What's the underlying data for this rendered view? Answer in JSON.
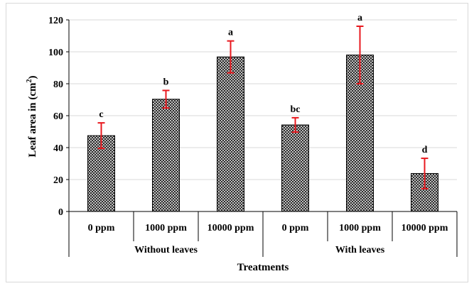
{
  "chart_data": {
    "type": "bar",
    "title": "",
    "ylabel": "Leaf area in (cm²)",
    "ylabel_main": "Leaf area in (cm",
    "ylabel_sup": "2",
    "ylabel_end": ")",
    "xlabel": "Treatments",
    "ylim": [
      0,
      120
    ],
    "yticks": [
      0,
      20,
      40,
      60,
      80,
      100,
      120
    ],
    "grid": true,
    "categories": [
      "0 ppm",
      "1000 ppm",
      "10000 ppm",
      "0 ppm",
      "1000 ppm",
      "10000 ppm"
    ],
    "groups": [
      {
        "label": "Without leaves",
        "span": [
          0,
          2
        ]
      },
      {
        "label": "With leaves",
        "span": [
          3,
          5
        ]
      }
    ],
    "values": [
      47.5,
      70.3,
      96.8,
      54.2,
      98.0,
      23.8
    ],
    "errors": [
      8,
      5.5,
      10,
      4.5,
      18,
      9.5
    ],
    "significance_letters": [
      "c",
      "b",
      "a",
      "bc",
      "a",
      "d"
    ],
    "colors": {
      "bar_fill": "#ffffff",
      "bar_hatch": "#222222",
      "error_bar": "#e8191f",
      "grid": "#d9d9d9",
      "axis": "#000000"
    }
  }
}
